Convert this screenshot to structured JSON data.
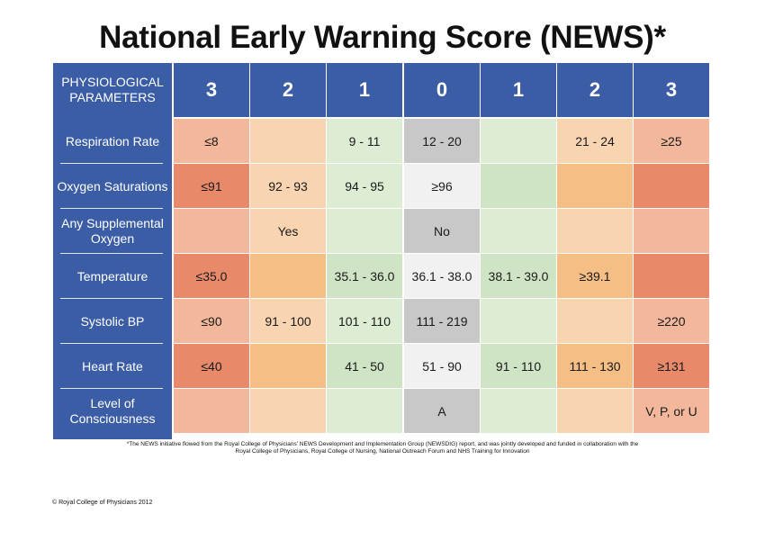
{
  "title": "National Early Warning Score (NEWS)*",
  "header": {
    "param_label": "PHYSIOLOGICAL PARAMETERS",
    "scores": [
      "3",
      "2",
      "1",
      "0",
      "1",
      "2",
      "3"
    ]
  },
  "colors": {
    "header_blue": "#3a5da6",
    "score_3_light": "#f3b89b",
    "score_3_dark": "#e8896a",
    "score_2_light": "#f8d5b0",
    "score_2_dark": "#f4be85",
    "score_1": "#dcedd3",
    "score_1_dark": "#cfe4c5",
    "score_0_grey": "#c8c8c8",
    "score_0_white": "#f1f1f1"
  },
  "rows": [
    {
      "parameter": "Respiration Rate",
      "cells": [
        "≤8",
        "",
        "9 - 11",
        "12 - 20",
        "",
        "21 - 24",
        "≥25"
      ]
    },
    {
      "parameter": "Oxygen Saturations",
      "cells": [
        "≤91",
        "92 - 93",
        "94 - 95",
        "≥96",
        "",
        "",
        ""
      ]
    },
    {
      "parameter": "Any Supplemental Oxygen",
      "cells": [
        "",
        "Yes",
        "",
        "No",
        "",
        "",
        ""
      ]
    },
    {
      "parameter": "Temperature",
      "cells": [
        "≤35.0",
        "",
        "35.1 - 36.0",
        "36.1 - 38.0",
        "38.1 - 39.0",
        "≥39.1",
        ""
      ]
    },
    {
      "parameter": "Systolic BP",
      "cells": [
        "≤90",
        "91 - 100",
        "101 - 110",
        "111 - 219",
        "",
        "",
        "≥220"
      ]
    },
    {
      "parameter": "Heart Rate",
      "cells": [
        "≤40",
        "",
        "41 - 50",
        "51 - 90",
        "91 - 110",
        "111 - 130",
        "≥131"
      ]
    },
    {
      "parameter": "Level of Consciousness",
      "cells": [
        "",
        "",
        "",
        "A",
        "",
        "",
        "V, P, or U"
      ]
    }
  ],
  "footnote_line1": "*The NEWS initiative flowed from the Royal College of Physicians' NEWS Development and Implementation Group (NEWSDIG) report, and was jointly developed and funded in collaboration with the",
  "footnote_line2": "Royal College of Physicians, Royal College of Nursing, National Outreach Forum and NHS Training for Innovation",
  "copyright": "© Royal College of Physicians 2012"
}
